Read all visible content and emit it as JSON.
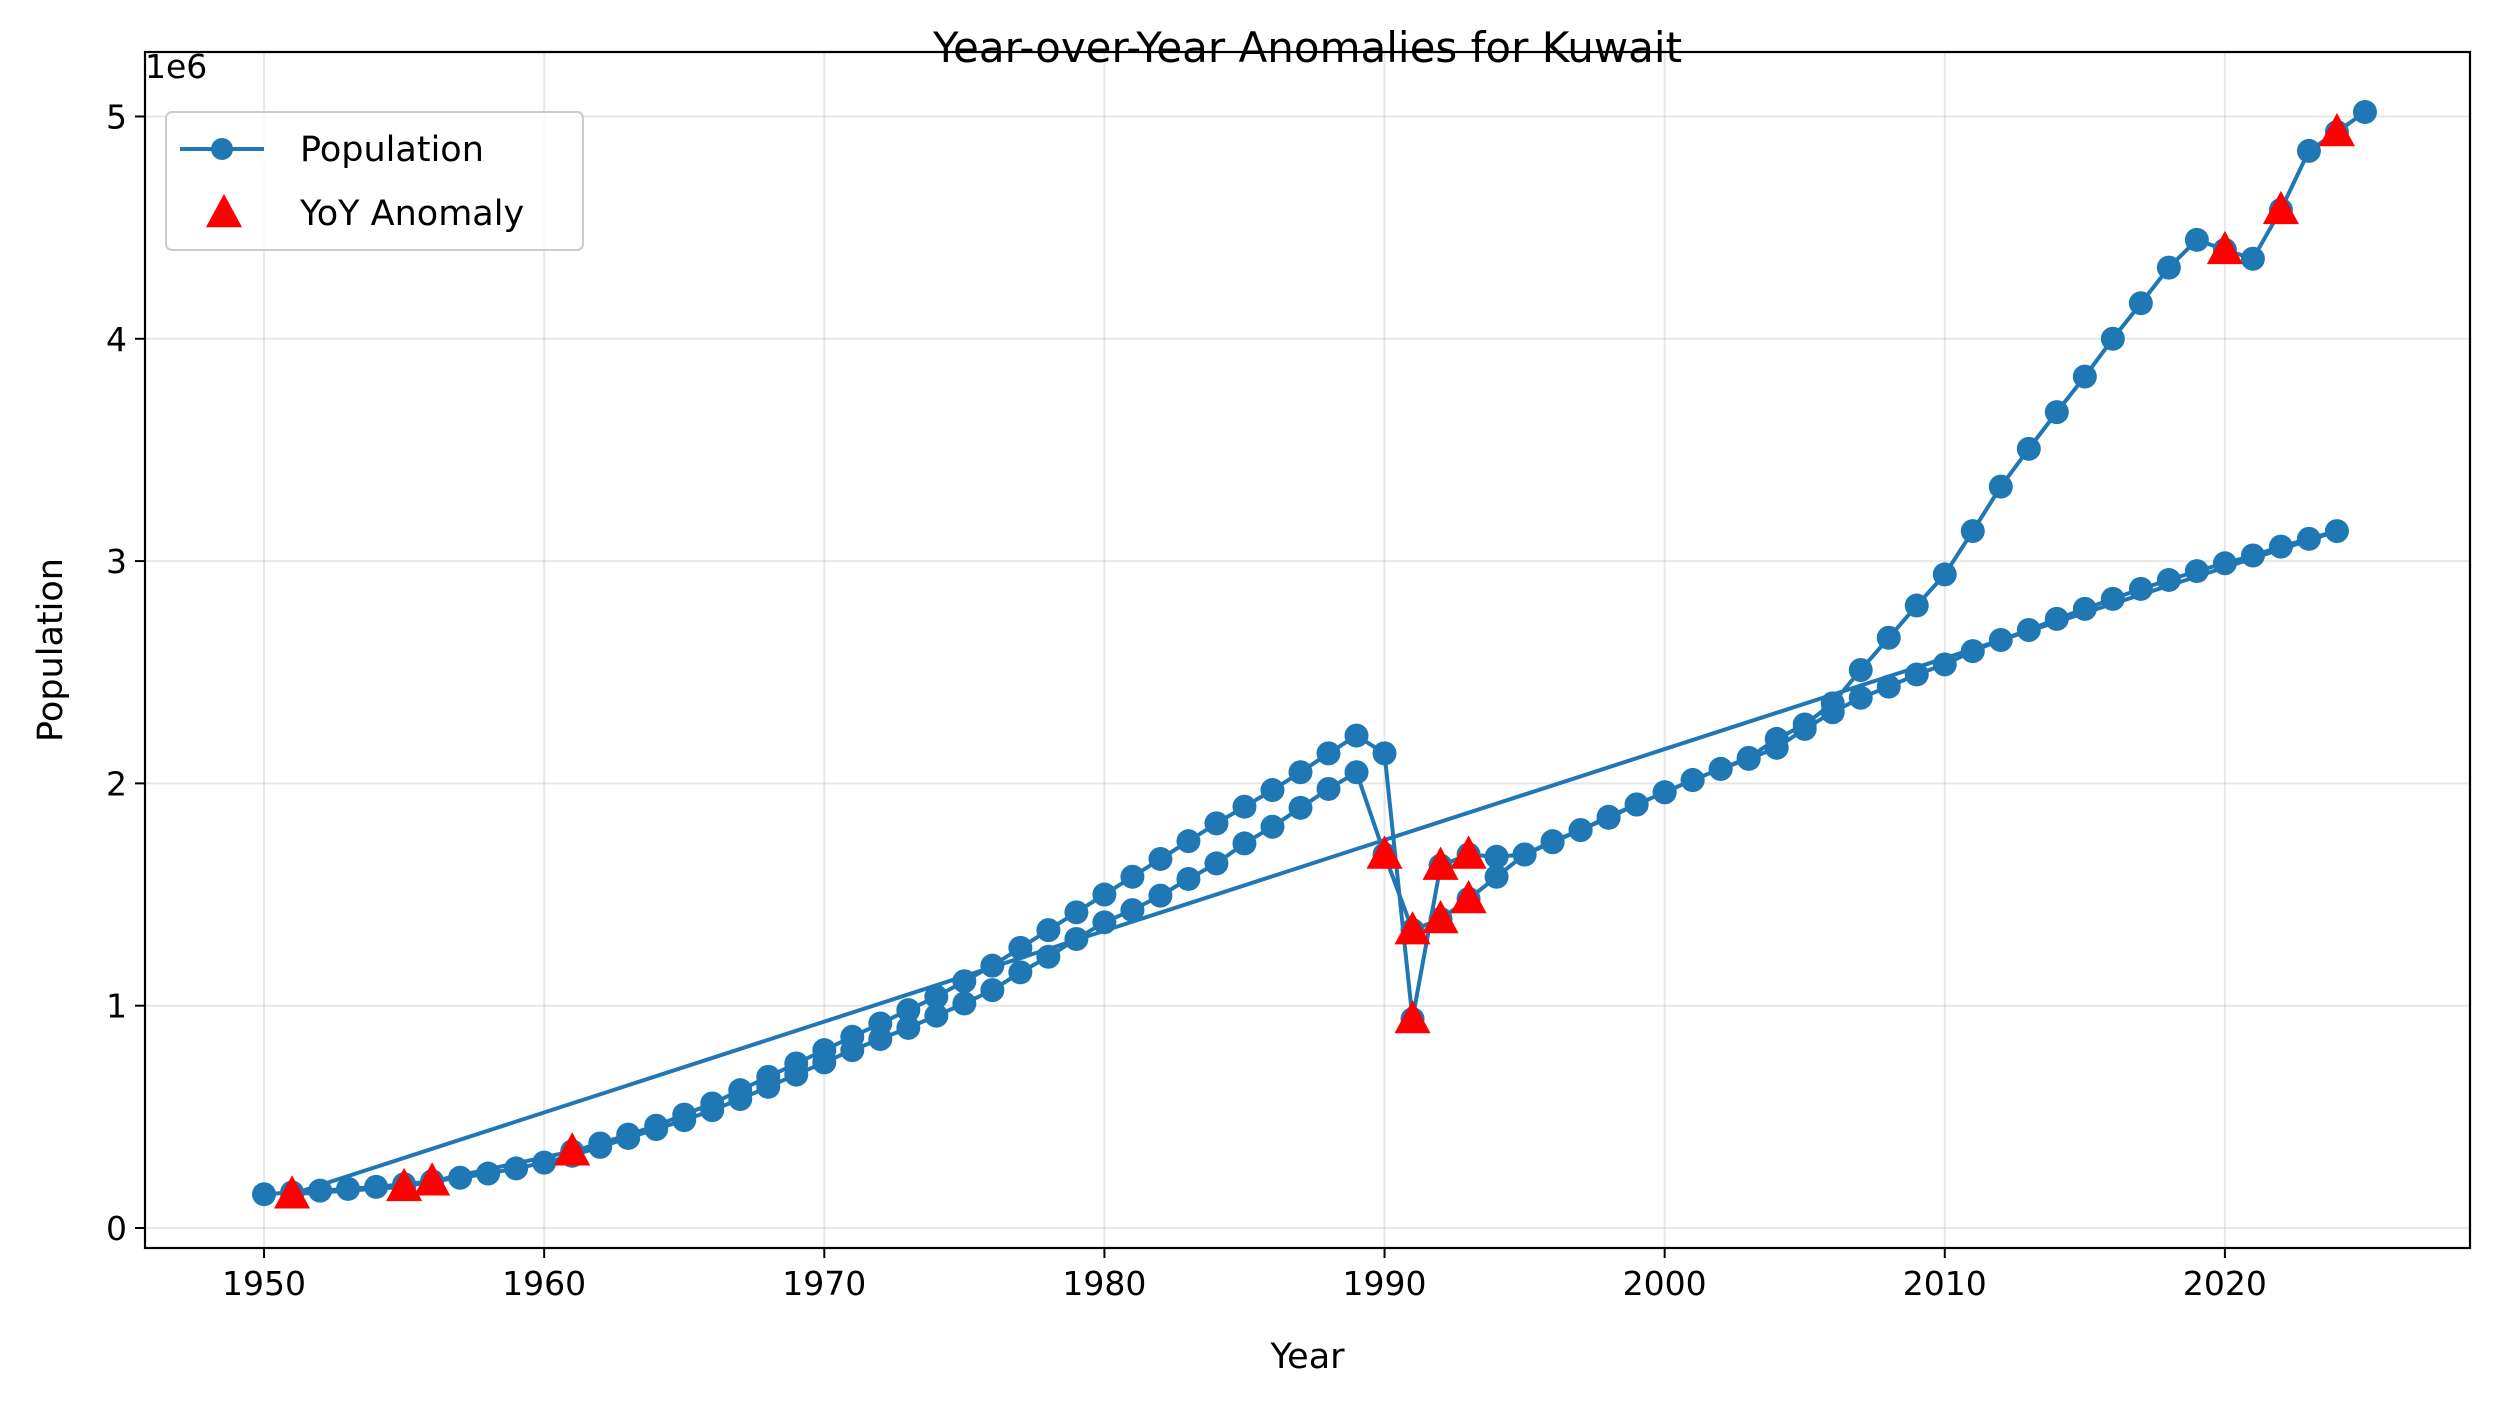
{
  "chart_data": {
    "type": "line",
    "title": "Year-over-Year Anomalies for Kuwait",
    "xlabel": "Year",
    "ylabel": "Population",
    "y_offset_label": "1e6",
    "xlim": [
      1945.75,
      2028.75
    ],
    "ylim": [
      -0.09,
      5.29
    ],
    "x_ticks": [
      1950,
      1960,
      1970,
      1980,
      1990,
      2000,
      2010,
      2020
    ],
    "x_tick_labels": [
      "1950",
      "1960",
      "1970",
      "1980",
      "1990",
      "2000",
      "2010",
      "2020"
    ],
    "y_ticks": [
      0,
      1,
      2,
      3,
      4,
      5
    ],
    "y_tick_labels": [
      "0",
      "1",
      "2",
      "3",
      "4",
      "5"
    ],
    "grid": true,
    "legend_position": "top-left",
    "colors": {
      "population": "#1f77b4",
      "anomaly": "#ff0000"
    },
    "series": [
      {
        "name": "Population",
        "marker": "circle",
        "x": [
          1950,
          1951,
          1952,
          1953,
          1954,
          1955,
          1956,
          1957,
          1958,
          1959,
          1960,
          1961,
          1962,
          1963,
          1964,
          1965,
          1966,
          1967,
          1968,
          1969,
          1970,
          1971,
          1972,
          1973,
          1974,
          1975,
          1976,
          1977,
          1978,
          1979,
          1980,
          1981,
          1982,
          1983,
          1984,
          1985,
          1986,
          1987,
          1988,
          1989,
          1990,
          1991,
          1992,
          1993,
          1994,
          1995,
          1996,
          1997,
          1998,
          1999,
          2000,
          2001,
          2002,
          2003,
          2004,
          2005,
          2006,
          2007,
          2008,
          2009,
          2010,
          2011,
          2012,
          2013,
          2014,
          2015,
          2016,
          2017,
          2018,
          2019,
          2020,
          2021,
          2022,
          2023,
          2024,
          1951,
          1955,
          1956,
          1961,
          1962,
          1963,
          1964,
          1965,
          1966,
          1967,
          1968,
          1969,
          1970,
          1971,
          1972,
          1973,
          1974,
          1975,
          1976,
          1977,
          1978,
          1979,
          1980,
          1981,
          1982,
          1983,
          1984,
          1985,
          1986,
          1987,
          1988,
          1989,
          1990,
          1991,
          1992,
          1993,
          1994,
          1995,
          1996,
          1997,
          1998,
          1999,
          2000,
          2001,
          2002,
          2003,
          2004,
          2005,
          2006,
          2007,
          2008,
          2009,
          2010,
          2011,
          2012,
          2013,
          2014,
          2015,
          2016,
          2017,
          2018,
          2019,
          2020,
          2021,
          2022,
          2023,
          2024,
          2025
        ],
        "y": [
          0.152,
          0.16,
          0.168,
          0.176,
          0.185,
          0.197,
          0.21,
          0.226,
          0.245,
          0.268,
          0.294,
          0.325,
          0.365,
          0.405,
          0.445,
          0.485,
          0.53,
          0.58,
          0.635,
          0.69,
          0.745,
          0.8,
          0.85,
          0.9,
          0.955,
          1.01,
          1.07,
          1.15,
          1.22,
          1.3,
          1.375,
          1.43,
          1.495,
          1.57,
          1.64,
          1.73,
          1.805,
          1.89,
          1.975,
          2.05,
          1.68,
          1.34,
          1.39,
          1.48,
          1.58,
          1.68,
          1.735,
          1.79,
          1.845,
          1.905,
          1.96,
          2.015,
          2.065,
          2.11,
          2.16,
          2.245,
          2.32,
          2.385,
          2.435,
          2.49,
          2.535,
          2.595,
          2.645,
          2.69,
          2.74,
          2.785,
          2.83,
          2.875,
          2.915,
          2.955,
          2.99,
          3.025,
          3.065,
          3.1,
          3.135,
          0.152,
          0.185,
          0.21,
          0.345,
          0.38,
          0.42,
          0.46,
          0.51,
          0.56,
          0.62,
          0.68,
          0.74,
          0.8,
          0.86,
          0.92,
          0.98,
          1.04,
          1.11,
          1.18,
          1.26,
          1.34,
          1.42,
          1.5,
          1.58,
          1.66,
          1.74,
          1.82,
          1.895,
          1.97,
          2.05,
          2.135,
          2.215,
          2.135,
          0.94,
          1.63,
          1.68,
          1.67,
          1.68,
          1.74,
          1.79,
          1.85,
          1.905,
          1.96,
          2.015,
          2.065,
          2.115,
          2.2,
          2.265,
          2.36,
          2.51,
          2.655,
          2.8,
          2.94,
          3.135,
          3.335,
          3.505,
          3.67,
          3.83,
          4.0,
          4.16,
          4.32,
          4.445,
          4.4,
          4.36,
          4.58,
          4.845,
          4.93,
          5.02
        ]
      },
      {
        "name": "YoY Anomaly",
        "marker": "triangle",
        "x": [
          1951,
          1955,
          1956,
          1961,
          1990,
          1991,
          1991,
          1992,
          1992,
          1993,
          1993,
          2020,
          2022,
          2024
        ],
        "y": [
          0.152,
          0.185,
          0.21,
          0.345,
          1.68,
          1.34,
          0.94,
          1.39,
          1.63,
          1.48,
          1.68,
          4.4,
          4.58,
          4.93
        ]
      }
    ]
  }
}
